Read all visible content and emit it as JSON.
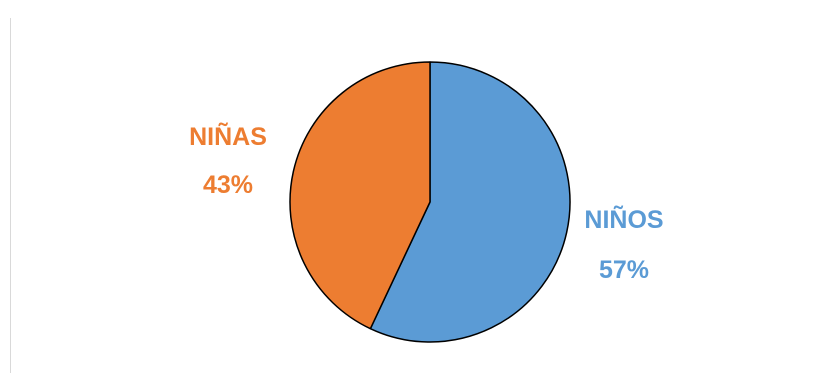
{
  "chart_data": {
    "type": "pie",
    "title": "",
    "slices": [
      {
        "label": "NIÑOS",
        "value": 57,
        "percent_label": "57%",
        "color": "#5b9bd5"
      },
      {
        "label": "NIÑAS",
        "value": 43,
        "percent_label": "43%",
        "color": "#ed7d31"
      }
    ],
    "legend": "none",
    "outline_color": "#000000"
  }
}
